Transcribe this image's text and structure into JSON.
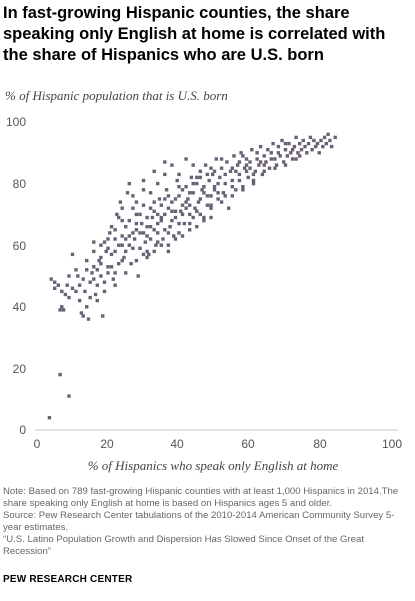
{
  "title": "In fast-growing  Hispanic counties, the share speaking only English at home is correlated with the share of Hispanics who are U.S. born",
  "notes": {
    "note": "Note: Based on 789 fast-growing Hispanic counties with at least 1,000 Hispanics in 2014.The share speaking only English at home is based on Hispanics ages 5 and older.",
    "source": "Source: Pew Research Center tabulations of the 2010-2014 American Community Survey 5-year estimates.",
    "report": "“U.S. Latino Population Growth and Dispersion Has Slowed Since Onset of the Great Recession”"
  },
  "footer": "PEW RESEARCH CENTER",
  "colors": {
    "point": "#6b6176",
    "axis": "#c9c9c9"
  },
  "chart_data": {
    "type": "scatter",
    "title": "In fast-growing  Hispanic counties, the share speaking only English at home is correlated with the share of Hispanics who are U.S. born",
    "xlabel": "% of Hispanics who speak only English at home",
    "ylabel": "% of Hispanic population that is U.S. born",
    "xlim": [
      0,
      100
    ],
    "ylim": [
      0,
      100
    ],
    "xticks": [
      "0",
      "20",
      "40",
      "60",
      "80",
      "100"
    ],
    "yticks": [
      "0",
      "20",
      "40",
      "60",
      "80",
      "100"
    ],
    "grid": false,
    "legend": "none",
    "n_points_described": 789,
    "points": [
      [
        3.5,
        4
      ],
      [
        9,
        11
      ],
      [
        6.5,
        18
      ],
      [
        4,
        49
      ],
      [
        5,
        48
      ],
      [
        6,
        47
      ],
      [
        6.5,
        39
      ],
      [
        7,
        40
      ],
      [
        7.5,
        39
      ],
      [
        8,
        44
      ],
      [
        8.5,
        47
      ],
      [
        9,
        43
      ],
      [
        10,
        46
      ],
      [
        10,
        57
      ],
      [
        11,
        52
      ],
      [
        11.5,
        50
      ],
      [
        12,
        42
      ],
      [
        12.5,
        38
      ],
      [
        13,
        37
      ],
      [
        13.5,
        45
      ],
      [
        14,
        40
      ],
      [
        14.5,
        36
      ],
      [
        15,
        48
      ],
      [
        15.5,
        51
      ],
      [
        16,
        53
      ],
      [
        16.5,
        44
      ],
      [
        17,
        47
      ],
      [
        17.5,
        55
      ],
      [
        18,
        56
      ],
      [
        18.5,
        37
      ],
      [
        19,
        61
      ],
      [
        19.5,
        58
      ],
      [
        20,
        53
      ],
      [
        20.5,
        64
      ],
      [
        21,
        66
      ],
      [
        21.5,
        49
      ],
      [
        22,
        51
      ],
      [
        22.5,
        70
      ],
      [
        23,
        69
      ],
      [
        23.5,
        74
      ],
      [
        24,
        60
      ],
      [
        24.5,
        56
      ],
      [
        25,
        58
      ],
      [
        25.5,
        77
      ],
      [
        26,
        80
      ],
      [
        26.5,
        54
      ],
      [
        27,
        72
      ],
      [
        27.5,
        62
      ],
      [
        28,
        65
      ],
      [
        28.5,
        50
      ],
      [
        29,
        59
      ],
      [
        29.5,
        67
      ],
      [
        30,
        73
      ],
      [
        30.5,
        61
      ],
      [
        31,
        63
      ],
      [
        31.5,
        57
      ],
      [
        32,
        66
      ],
      [
        32.5,
        69
      ],
      [
        33,
        71
      ],
      [
        33.5,
        60
      ],
      [
        34,
        64
      ],
      [
        34.5,
        75
      ],
      [
        35,
        68
      ],
      [
        35.5,
        62
      ],
      [
        36,
        70
      ],
      [
        36.5,
        78
      ],
      [
        37,
        72
      ],
      [
        37.5,
        66
      ],
      [
        38,
        74
      ],
      [
        38.5,
        63
      ],
      [
        39,
        69
      ],
      [
        39.5,
        81
      ],
      [
        40,
        76
      ],
      [
        40.5,
        71
      ],
      [
        41,
        73
      ],
      [
        41.5,
        67
      ],
      [
        42,
        79
      ],
      [
        42.5,
        75
      ],
      [
        43,
        70
      ],
      [
        43.5,
        82
      ],
      [
        44,
        77
      ],
      [
        44.5,
        72
      ],
      [
        45,
        80
      ],
      [
        45.5,
        74
      ],
      [
        46,
        84
      ],
      [
        46.5,
        78
      ],
      [
        47,
        69
      ],
      [
        47.5,
        86
      ],
      [
        48,
        76
      ],
      [
        48.5,
        81
      ],
      [
        49,
        73
      ],
      [
        49.5,
        83
      ],
      [
        50,
        79
      ],
      [
        50.5,
        88
      ],
      [
        51,
        75
      ],
      [
        51.5,
        82
      ],
      [
        52,
        85
      ],
      [
        52.5,
        77
      ],
      [
        53,
        80
      ],
      [
        53.5,
        87
      ],
      [
        54,
        72
      ],
      [
        54.5,
        84
      ],
      [
        55,
        81
      ],
      [
        55.5,
        89
      ],
      [
        56,
        78
      ],
      [
        56.5,
        86
      ],
      [
        57,
        83
      ],
      [
        57.5,
        90
      ],
      [
        58,
        79
      ],
      [
        58.5,
        85
      ],
      [
        59,
        88
      ],
      [
        59.5,
        82
      ],
      [
        60,
        87
      ],
      [
        60.5,
        91
      ],
      [
        61,
        80
      ],
      [
        61.5,
        84
      ],
      [
        62,
        88
      ],
      [
        62.5,
        86
      ],
      [
        63,
        92
      ],
      [
        63.5,
        83
      ],
      [
        64,
        89
      ],
      [
        64.5,
        87
      ],
      [
        65,
        91
      ],
      [
        65.5,
        85
      ],
      [
        66,
        90
      ],
      [
        66.5,
        93
      ],
      [
        67,
        88
      ],
      [
        67.5,
        86
      ],
      [
        68,
        92
      ],
      [
        68.5,
        89
      ],
      [
        69,
        94
      ],
      [
        69.5,
        87
      ],
      [
        70,
        91
      ],
      [
        70.5,
        89
      ],
      [
        71,
        93
      ],
      [
        71.5,
        90
      ],
      [
        72,
        88
      ],
      [
        72.5,
        92
      ],
      [
        73,
        95
      ],
      [
        73.5,
        90
      ],
      [
        74,
        93
      ],
      [
        74.5,
        91
      ],
      [
        75,
        94
      ],
      [
        75.5,
        92
      ],
      [
        76,
        90
      ],
      [
        76.5,
        93
      ],
      [
        77,
        95
      ],
      [
        77.5,
        91
      ],
      [
        78,
        94
      ],
      [
        78.5,
        92
      ],
      [
        79,
        93
      ],
      [
        79.5,
        90
      ],
      [
        80,
        94
      ],
      [
        80.5,
        92
      ],
      [
        81,
        95
      ],
      [
        81.5,
        93
      ],
      [
        82,
        96
      ],
      [
        82.5,
        94
      ],
      [
        83,
        92
      ],
      [
        84,
        95
      ],
      [
        5,
        46
      ],
      [
        7,
        45
      ],
      [
        9,
        50
      ],
      [
        11,
        45
      ],
      [
        13,
        49
      ],
      [
        15,
        43
      ],
      [
        17,
        52
      ],
      [
        19,
        48
      ],
      [
        21,
        57
      ],
      [
        23,
        54
      ],
      [
        25,
        62
      ],
      [
        27,
        59
      ],
      [
        29,
        64
      ],
      [
        31,
        69
      ],
      [
        33,
        65
      ],
      [
        35,
        73
      ],
      [
        37,
        64
      ],
      [
        39,
        75
      ],
      [
        41,
        70
      ],
      [
        43,
        77
      ],
      [
        45,
        71
      ],
      [
        47,
        79
      ],
      [
        49,
        76
      ],
      [
        51,
        80
      ],
      [
        53,
        76
      ],
      [
        55,
        85
      ],
      [
        57,
        81
      ],
      [
        59,
        86
      ],
      [
        61,
        83
      ],
      [
        63,
        87
      ],
      [
        14,
        55
      ],
      [
        16,
        58
      ],
      [
        18,
        50
      ],
      [
        20,
        59
      ],
      [
        22,
        62
      ],
      [
        24,
        55
      ],
      [
        26,
        63
      ],
      [
        28,
        70
      ],
      [
        30,
        64
      ],
      [
        32,
        72
      ],
      [
        34,
        67
      ],
      [
        36,
        75
      ],
      [
        38,
        68
      ],
      [
        40,
        79
      ],
      [
        42,
        72
      ],
      [
        44,
        80
      ],
      [
        46,
        75
      ],
      [
        48,
        83
      ],
      [
        50,
        78
      ],
      [
        52,
        88
      ],
      [
        12,
        47
      ],
      [
        14,
        52
      ],
      [
        16,
        49
      ],
      [
        18,
        54
      ],
      [
        20,
        51
      ],
      [
        22,
        58
      ],
      [
        24,
        63
      ],
      [
        26,
        60
      ],
      [
        28,
        67
      ],
      [
        30,
        57
      ],
      [
        32,
        62
      ],
      [
        34,
        70
      ],
      [
        36,
        65
      ],
      [
        38,
        71
      ],
      [
        40,
        67
      ],
      [
        42,
        74
      ],
      [
        44,
        69
      ],
      [
        46,
        82
      ],
      [
        48,
        73
      ],
      [
        50,
        84
      ],
      [
        21,
        53
      ],
      [
        23,
        60
      ],
      [
        25,
        66
      ],
      [
        27,
        64
      ],
      [
        29,
        70
      ],
      [
        31,
        66
      ],
      [
        33,
        74
      ],
      [
        35,
        69
      ],
      [
        37,
        76
      ],
      [
        39,
        71
      ],
      [
        41,
        78
      ],
      [
        43,
        73
      ],
      [
        45,
        82
      ],
      [
        47,
        77
      ],
      [
        49,
        85
      ],
      [
        51,
        77
      ],
      [
        53,
        83
      ],
      [
        55,
        79
      ],
      [
        57,
        87
      ],
      [
        59,
        84
      ],
      [
        17,
        42
      ],
      [
        19,
        45
      ],
      [
        22,
        47
      ],
      [
        25,
        51
      ],
      [
        28,
        55
      ],
      [
        31,
        58
      ],
      [
        34,
        61
      ],
      [
        37,
        60
      ],
      [
        40,
        64
      ],
      [
        43,
        67
      ],
      [
        46,
        70
      ],
      [
        49,
        72
      ],
      [
        52,
        74
      ],
      [
        55,
        76
      ],
      [
        58,
        78
      ],
      [
        61,
        81
      ],
      [
        64,
        84
      ],
      [
        67,
        85
      ],
      [
        70,
        86
      ],
      [
        73,
        88
      ],
      [
        26,
        68
      ],
      [
        28,
        74
      ],
      [
        30,
        78
      ],
      [
        32,
        77
      ],
      [
        34,
        80
      ],
      [
        36,
        83
      ],
      [
        38,
        86
      ],
      [
        40,
        83
      ],
      [
        42,
        88
      ],
      [
        44,
        86
      ],
      [
        31,
        56
      ],
      [
        33,
        58
      ],
      [
        35,
        60
      ],
      [
        37,
        58
      ],
      [
        39,
        62
      ],
      [
        41,
        63
      ],
      [
        43,
        65
      ],
      [
        45,
        66
      ],
      [
        47,
        68
      ],
      [
        49,
        69
      ],
      [
        56,
        84
      ],
      [
        58,
        89
      ],
      [
        60,
        85
      ],
      [
        62,
        90
      ],
      [
        64,
        86
      ],
      [
        66,
        88
      ],
      [
        68,
        90
      ],
      [
        70,
        93
      ],
      [
        72,
        91
      ],
      [
        74,
        89
      ],
      [
        20,
        62
      ],
      [
        22,
        65
      ],
      [
        24,
        68
      ],
      [
        18,
        60
      ],
      [
        16,
        61
      ],
      [
        24,
        72
      ],
      [
        27,
        76
      ],
      [
        30,
        81
      ],
      [
        33,
        84
      ],
      [
        36,
        87
      ]
    ]
  }
}
